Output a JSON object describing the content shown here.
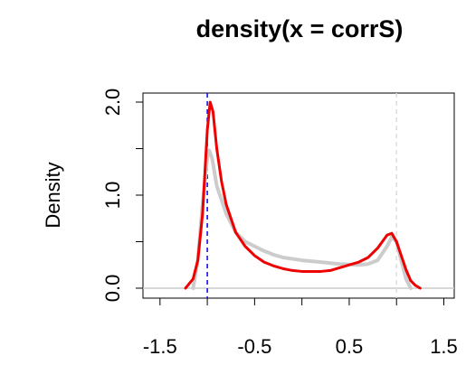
{
  "chart_data": {
    "type": "line",
    "title": "density(x = corrS)",
    "y_label": "Density",
    "xlim": [
      -1.68,
      1.61
    ],
    "ylim": [
      -0.107,
      2.097
    ],
    "xticks": [
      -1.5,
      -0.5,
      0.5,
      1.5
    ],
    "xminor_ticks": [
      -1,
      0,
      1
    ],
    "yticks": [
      {
        "value": 0,
        "label": "0.0"
      },
      {
        "value": 1,
        "label": "1.0"
      },
      {
        "value": 2,
        "label": "2.0"
      }
    ],
    "yminor_ticks": [
      0.5,
      1.5
    ],
    "hline": {
      "value": 0,
      "color": "#cccccc"
    },
    "vlines": [
      {
        "value": -1,
        "color": "#0000ff"
      },
      {
        "value": 1,
        "color": "#dddddd"
      }
    ],
    "series": [
      {
        "color": "#cccccc",
        "width": 4,
        "x": [
          -1.15,
          -1.1,
          -1.05,
          -1.0,
          -0.98,
          -0.95,
          -0.9,
          -0.8,
          -0.7,
          -0.6,
          -0.5,
          -0.4,
          -0.3,
          -0.2,
          0,
          0.2,
          0.4,
          0.6,
          0.7,
          0.8,
          0.9,
          0.95,
          1.0,
          1.05,
          1.1,
          1.15
        ],
        "values": [
          0,
          0.3,
          0.9,
          1.4,
          1.48,
          1.4,
          1.1,
          0.8,
          0.6,
          0.5,
          0.45,
          0.4,
          0.36,
          0.33,
          0.3,
          0.28,
          0.26,
          0.25,
          0.26,
          0.3,
          0.45,
          0.55,
          0.5,
          0.3,
          0.1,
          0
        ]
      },
      {
        "color": "#ee0000",
        "width": 3,
        "x": [
          -1.23,
          -1.15,
          -1.1,
          -1.05,
          -1.0,
          -0.97,
          -0.94,
          -0.9,
          -0.85,
          -0.8,
          -0.7,
          -0.6,
          -0.5,
          -0.4,
          -0.3,
          -0.2,
          -0.1,
          0,
          0.2,
          0.3,
          0.4,
          0.5,
          0.6,
          0.7,
          0.8,
          0.85,
          0.9,
          0.95,
          1.0,
          1.05,
          1.1,
          1.15,
          1.2,
          1.25
        ],
        "values": [
          0,
          0.1,
          0.3,
          0.8,
          1.7,
          2.0,
          1.9,
          1.5,
          1.15,
          0.9,
          0.6,
          0.45,
          0.35,
          0.28,
          0.24,
          0.21,
          0.19,
          0.18,
          0.18,
          0.19,
          0.22,
          0.25,
          0.28,
          0.33,
          0.43,
          0.5,
          0.57,
          0.59,
          0.5,
          0.35,
          0.2,
          0.08,
          0.03,
          0
        ]
      }
    ]
  }
}
